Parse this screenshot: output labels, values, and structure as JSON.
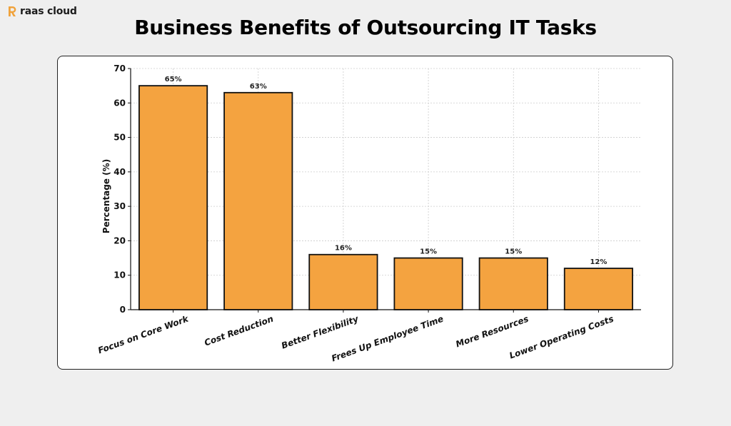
{
  "brand": {
    "name": "raas cloud",
    "logo_icon": "raas-cloud-logo-icon",
    "accent": "#f0a23b"
  },
  "page_title": "Business Benefits of Outsourcing IT Tasks",
  "chart_data": {
    "type": "bar",
    "title": "Business Benefits of Outsourcing IT Tasks",
    "xlabel": "",
    "ylabel": "Percentage (%)",
    "categories": [
      "Focus on Core Work",
      "Cost Reduction",
      "Better Flexibility",
      "Frees Up Employee Time",
      "More Resources",
      "Lower Operating Costs"
    ],
    "values": [
      65,
      63,
      16,
      15,
      15,
      12
    ],
    "data_labels": [
      "65%",
      "63%",
      "16%",
      "15%",
      "15%",
      "12%"
    ],
    "ylim": [
      0,
      70
    ],
    "yticks": [
      0,
      10,
      20,
      30,
      40,
      50,
      60,
      70
    ],
    "grid": true,
    "legend": "none",
    "bar_color": "#f4a340",
    "bar_edge_color": "#111111"
  }
}
